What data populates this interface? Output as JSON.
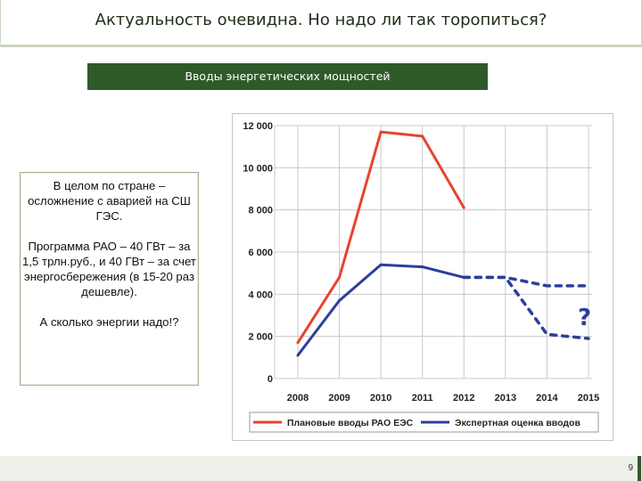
{
  "slide": {
    "title": "Актуальность очевидна. Но надо ли так торопиться?",
    "banner": "Вводы энергетических мощностей",
    "page_number": "9"
  },
  "note": {
    "p1": "В целом по стране – осложнение с аварией на СШ ГЭС.",
    "p2": "Программа РАО – 40 ГВт – за 1,5 трлн.руб., и 40 ГВт – за счет энергосбережения (в 15-20 раз дешевле).",
    "p3": "А сколько энергии надо!?"
  },
  "chart_data": {
    "type": "line",
    "categories": [
      "2008",
      "2009",
      "2010",
      "2011",
      "2012",
      "2013",
      "2014",
      "2015"
    ],
    "ylim": [
      0,
      12000
    ],
    "y_ticks": [
      "0",
      "2 000",
      "4 000",
      "6 000",
      "8 000",
      "10 000",
      "12 000"
    ],
    "grid": true,
    "legend_position": "bottom",
    "annotation": "?",
    "series": [
      {
        "name": "Плановые вводы РАО ЕЭС",
        "color": "#e8432e",
        "values": [
          1700,
          4800,
          11700,
          11500,
          8100,
          null,
          null,
          null
        ]
      },
      {
        "name": "Экспертная оценка вводов",
        "color": "#2c3f9a",
        "values": [
          1100,
          3700,
          5400,
          5300,
          4800,
          null,
          null,
          null
        ],
        "projections": [
          [
            4800,
            4800,
            4400,
            4400
          ],
          [
            4800,
            4800,
            2100,
            1900
          ]
        ]
      }
    ]
  }
}
